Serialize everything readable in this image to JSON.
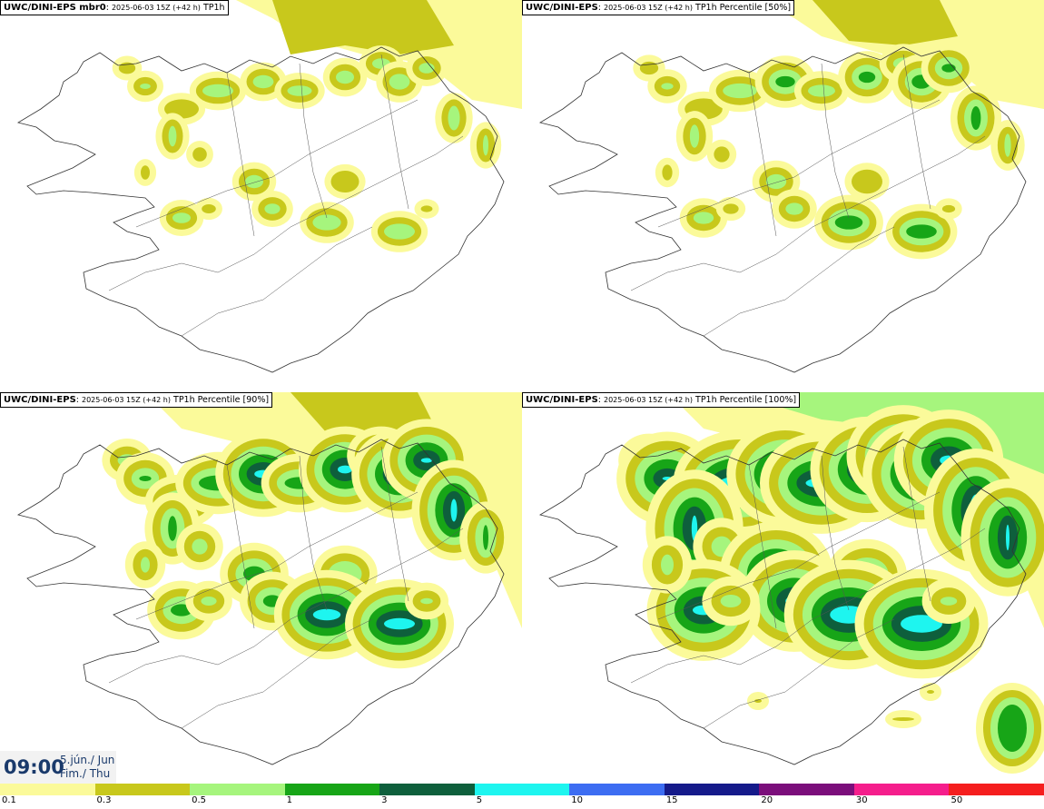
{
  "panels": [
    {
      "id": "mbr0",
      "model": "UWC/DINI-EPS",
      "member": " mbr0",
      "run": "2025-06-03 15Z (+42 h)",
      "field": "TP1h",
      "intensity": 1
    },
    {
      "id": "p50",
      "model": "UWC/DINI-EPS",
      "member": "",
      "run": "2025-06-03 15Z (+42 h)",
      "field": "TP1h Percentile [50%]",
      "intensity": 1.3
    },
    {
      "id": "p90",
      "model": "UWC/DINI-EPS",
      "member": "",
      "run": "2025-06-03 15Z (+42 h)",
      "field": "TP1h Percentile [90%]",
      "intensity": 2
    },
    {
      "id": "p100",
      "model": "UWC/DINI-EPS",
      "member": "",
      "run": "2025-06-03 15Z (+42 h)",
      "field": "TP1h Percentile [100%]",
      "intensity": 3
    }
  ],
  "valid_time": {
    "time": "09:00",
    "date": "5.jún./ Jun",
    "day": "Fim./ Thu"
  },
  "legend": {
    "colors": [
      "#fbfa9a",
      "#c8c81c",
      "#a6f57d",
      "#17a517",
      "#0e5f3c",
      "#1ef5ef",
      "#3d6df2",
      "#151a8a",
      "#7b0e7b",
      "#f51e8c",
      "#f51e1e"
    ],
    "ticks": [
      "0.1",
      "0.3",
      "0.5",
      "1",
      "3",
      "5",
      "10",
      "15",
      "20",
      "30",
      "50"
    ]
  }
}
